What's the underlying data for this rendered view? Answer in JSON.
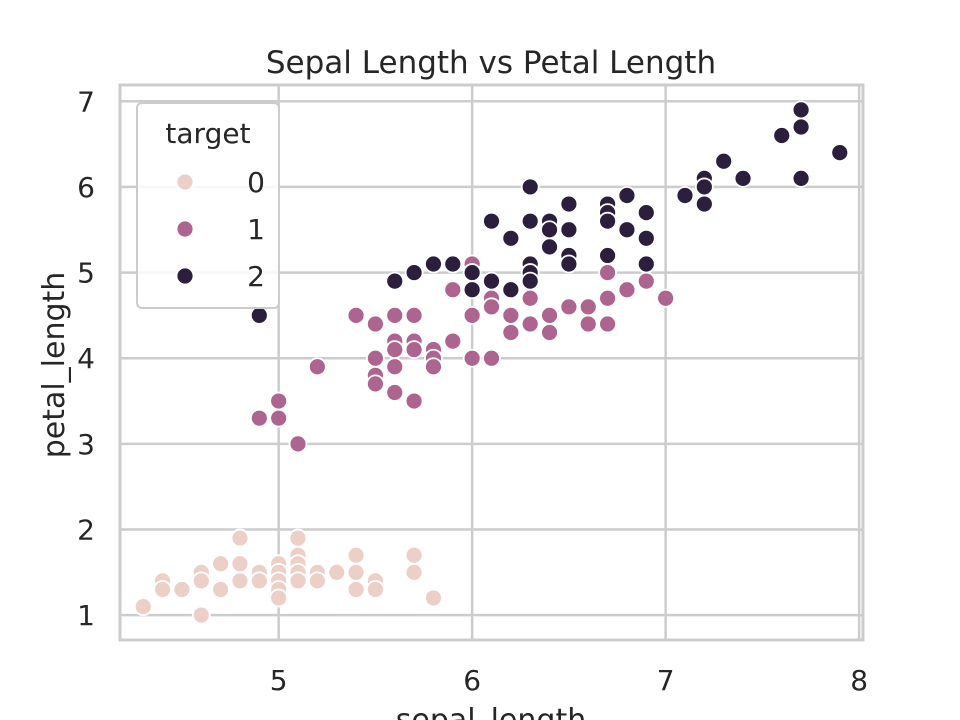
{
  "chart_data": {
    "type": "scatter",
    "title": "Sepal Length vs Petal Length",
    "xlabel": "sepal_length",
    "ylabel": "petal_length",
    "xlim": [
      4.18,
      8.02
    ],
    "ylim": [
      0.71,
      7.19
    ],
    "xticks": [
      5,
      6,
      7,
      8
    ],
    "yticks": [
      1,
      2,
      3,
      4,
      5,
      6,
      7
    ],
    "grid": true,
    "legend": {
      "title": "target",
      "placement": "top-left"
    },
    "series": [
      {
        "name": "0",
        "color": "#ecd0c8",
        "points": [
          [
            4.3,
            1.1
          ],
          [
            4.4,
            1.4
          ],
          [
            4.4,
            1.3
          ],
          [
            4.5,
            1.3
          ],
          [
            4.6,
            1.0
          ],
          [
            4.6,
            1.5
          ],
          [
            4.6,
            1.4
          ],
          [
            4.7,
            1.3
          ],
          [
            4.7,
            1.6
          ],
          [
            4.8,
            1.9
          ],
          [
            4.8,
            1.6
          ],
          [
            4.8,
            1.4
          ],
          [
            4.9,
            1.5
          ],
          [
            4.9,
            1.4
          ],
          [
            5.0,
            1.6
          ],
          [
            5.0,
            1.5
          ],
          [
            5.0,
            1.4
          ],
          [
            5.0,
            1.3
          ],
          [
            5.0,
            1.2
          ],
          [
            5.1,
            1.9
          ],
          [
            5.1,
            1.7
          ],
          [
            5.1,
            1.6
          ],
          [
            5.1,
            1.5
          ],
          [
            5.1,
            1.4
          ],
          [
            5.2,
            1.5
          ],
          [
            5.2,
            1.4
          ],
          [
            5.3,
            1.5
          ],
          [
            5.4,
            1.7
          ],
          [
            5.4,
            1.5
          ],
          [
            5.4,
            1.3
          ],
          [
            5.5,
            1.4
          ],
          [
            5.5,
            1.3
          ],
          [
            5.7,
            1.7
          ],
          [
            5.7,
            1.5
          ],
          [
            5.8,
            1.2
          ]
        ]
      },
      {
        "name": "1",
        "color": "#ad6590",
        "points": [
          [
            4.9,
            3.3
          ],
          [
            5.0,
            3.5
          ],
          [
            5.0,
            3.3
          ],
          [
            5.1,
            3.0
          ],
          [
            5.2,
            3.9
          ],
          [
            5.4,
            4.5
          ],
          [
            5.5,
            4.4
          ],
          [
            5.5,
            4.0
          ],
          [
            5.5,
            3.8
          ],
          [
            5.5,
            3.7
          ],
          [
            5.6,
            4.5
          ],
          [
            5.6,
            4.2
          ],
          [
            5.6,
            4.1
          ],
          [
            5.6,
            3.9
          ],
          [
            5.6,
            3.6
          ],
          [
            5.7,
            4.5
          ],
          [
            5.7,
            4.2
          ],
          [
            5.7,
            4.1
          ],
          [
            5.7,
            3.5
          ],
          [
            5.8,
            4.1
          ],
          [
            5.8,
            4.0
          ],
          [
            5.8,
            3.9
          ],
          [
            5.9,
            4.8
          ],
          [
            5.9,
            4.2
          ],
          [
            6.0,
            5.1
          ],
          [
            6.0,
            4.5
          ],
          [
            6.0,
            4.0
          ],
          [
            6.1,
            4.7
          ],
          [
            6.1,
            4.6
          ],
          [
            6.1,
            4.0
          ],
          [
            6.2,
            4.5
          ],
          [
            6.2,
            4.3
          ],
          [
            6.3,
            4.9
          ],
          [
            6.3,
            4.7
          ],
          [
            6.3,
            4.4
          ],
          [
            6.4,
            4.5
          ],
          [
            6.4,
            4.3
          ],
          [
            6.5,
            4.6
          ],
          [
            6.6,
            4.6
          ],
          [
            6.6,
            4.4
          ],
          [
            6.7,
            5.0
          ],
          [
            6.7,
            4.7
          ],
          [
            6.7,
            4.4
          ],
          [
            6.8,
            4.8
          ],
          [
            6.9,
            4.9
          ],
          [
            7.0,
            4.7
          ]
        ]
      },
      {
        "name": "2",
        "color": "#2c1e3d",
        "points": [
          [
            4.9,
            4.5
          ],
          [
            5.6,
            4.9
          ],
          [
            5.7,
            5.0
          ],
          [
            5.8,
            5.1
          ],
          [
            5.9,
            5.1
          ],
          [
            6.0,
            5.0
          ],
          [
            6.0,
            4.8
          ],
          [
            6.1,
            5.6
          ],
          [
            6.1,
            4.9
          ],
          [
            6.2,
            5.4
          ],
          [
            6.2,
            4.8
          ],
          [
            6.3,
            6.0
          ],
          [
            6.3,
            5.6
          ],
          [
            6.3,
            5.1
          ],
          [
            6.3,
            5.0
          ],
          [
            6.3,
            4.9
          ],
          [
            6.4,
            5.6
          ],
          [
            6.4,
            5.5
          ],
          [
            6.4,
            5.3
          ],
          [
            6.5,
            5.8
          ],
          [
            6.5,
            5.5
          ],
          [
            6.5,
            5.2
          ],
          [
            6.5,
            5.1
          ],
          [
            6.7,
            5.8
          ],
          [
            6.7,
            5.7
          ],
          [
            6.7,
            5.6
          ],
          [
            6.7,
            5.2
          ],
          [
            6.8,
            5.9
          ],
          [
            6.8,
            5.5
          ],
          [
            6.9,
            5.7
          ],
          [
            6.9,
            5.4
          ],
          [
            6.9,
            5.1
          ],
          [
            7.1,
            5.9
          ],
          [
            7.2,
            6.1
          ],
          [
            7.2,
            6.0
          ],
          [
            7.2,
            5.8
          ],
          [
            7.3,
            6.3
          ],
          [
            7.4,
            6.1
          ],
          [
            7.6,
            6.6
          ],
          [
            7.7,
            6.9
          ],
          [
            7.7,
            6.7
          ],
          [
            7.7,
            6.1
          ],
          [
            7.9,
            6.4
          ]
        ]
      }
    ]
  }
}
